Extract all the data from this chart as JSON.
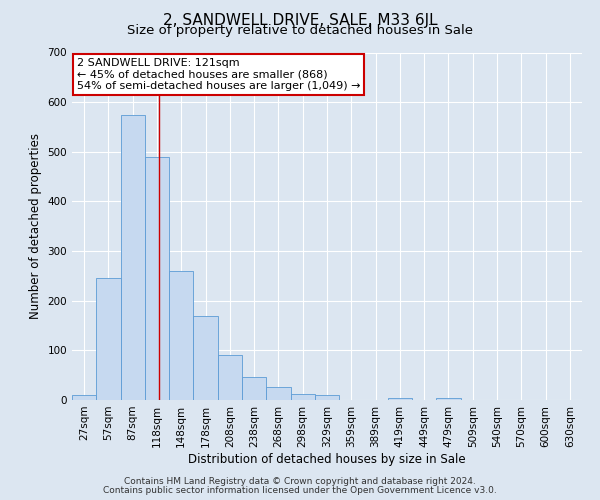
{
  "title": "2, SANDWELL DRIVE, SALE, M33 6JL",
  "subtitle": "Size of property relative to detached houses in Sale",
  "xlabel": "Distribution of detached houses by size in Sale",
  "ylabel": "Number of detached properties",
  "bar_labels": [
    "27sqm",
    "57sqm",
    "87sqm",
    "118sqm",
    "148sqm",
    "178sqm",
    "208sqm",
    "238sqm",
    "268sqm",
    "298sqm",
    "329sqm",
    "359sqm",
    "389sqm",
    "419sqm",
    "449sqm",
    "479sqm",
    "509sqm",
    "540sqm",
    "570sqm",
    "600sqm",
    "630sqm"
  ],
  "bar_values": [
    10,
    245,
    575,
    490,
    260,
    170,
    90,
    47,
    27,
    13,
    10,
    0,
    0,
    5,
    0,
    5,
    0,
    0,
    0,
    0,
    0
  ],
  "bar_color": "#c6d9f0",
  "bar_edge_color": "#5b9bd5",
  "ylim": [
    0,
    700
  ],
  "yticks": [
    0,
    100,
    200,
    300,
    400,
    500,
    600,
    700
  ],
  "annotation_box_text": [
    "2 SANDWELL DRIVE: 121sqm",
    "← 45% of detached houses are smaller (868)",
    "54% of semi-detached houses are larger (1,049) →"
  ],
  "annotation_box_color": "#cc0000",
  "footer_lines": [
    "Contains HM Land Registry data © Crown copyright and database right 2024.",
    "Contains public sector information licensed under the Open Government Licence v3.0."
  ],
  "background_color": "#dce6f1",
  "plot_background_color": "#dce6f1",
  "grid_color": "#ffffff",
  "title_fontsize": 11,
  "subtitle_fontsize": 9.5,
  "tick_label_fontsize": 7.5,
  "axis_label_fontsize": 8.5,
  "footer_fontsize": 6.5,
  "annotation_fontsize": 8
}
